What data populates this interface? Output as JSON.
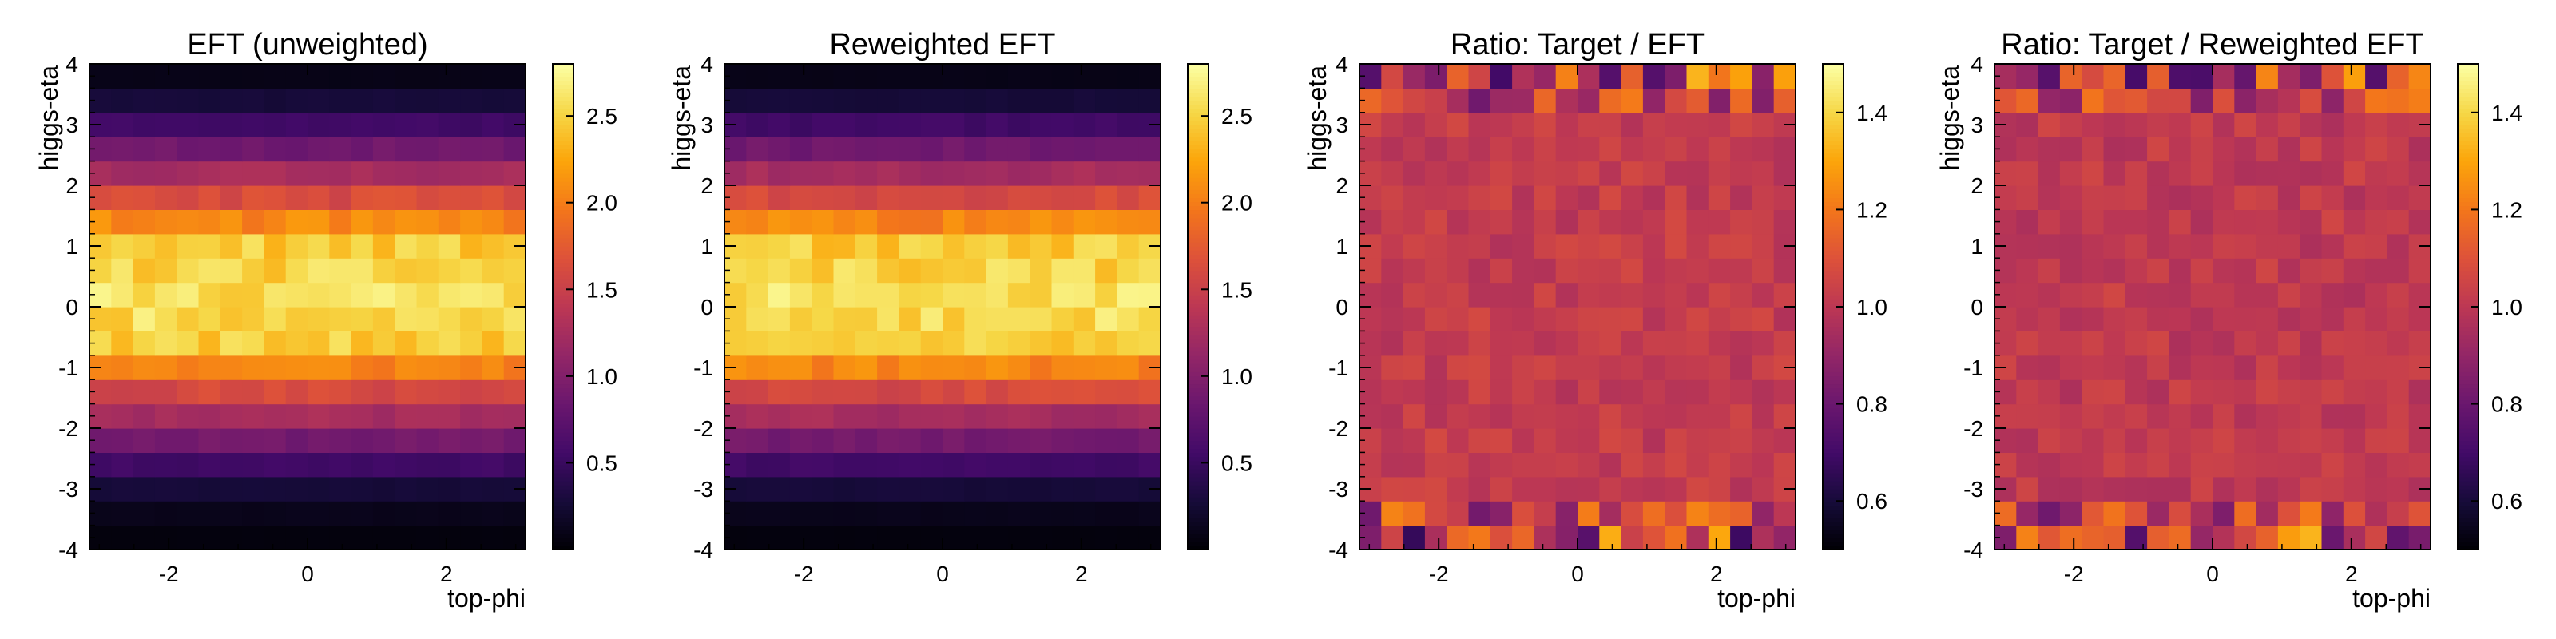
{
  "chart_data": [
    {
      "type": "heatmap",
      "title": "EFT (unweighted)",
      "xlabel": "top-phi",
      "ylabel": "higgs-eta",
      "xlim": [
        -3.14159,
        3.14159
      ],
      "ylim": [
        -4,
        4
      ],
      "x_ticks": [
        -2,
        0,
        2
      ],
      "y_ticks": [
        -4,
        -3,
        -2,
        -1,
        0,
        1,
        2,
        3,
        4
      ],
      "nx": 20,
      "ny": 20,
      "colorbar": {
        "min": 0.0,
        "max": 2.8,
        "ticks": [
          0.5,
          1.0,
          1.5,
          2.0,
          2.5
        ],
        "colormap": "inferno"
      },
      "row_values": [
        0.05,
        0.12,
        0.28,
        0.55,
        0.9,
        1.25,
        1.6,
        2.05,
        2.45,
        2.55,
        2.58,
        2.5,
        2.45,
        2.05,
        1.62,
        1.25,
        0.88,
        0.55,
        0.28,
        0.1
      ],
      "noise": 0.06,
      "seed": 11
    },
    {
      "type": "heatmap",
      "title": "Reweighted EFT",
      "xlabel": "",
      "ylabel": "higgs-eta",
      "xlim": [
        -3.14159,
        3.14159
      ],
      "ylim": [
        -4,
        4
      ],
      "x_ticks": [
        -2,
        0,
        2
      ],
      "y_ticks": [
        -4,
        -3,
        -2,
        -1,
        0,
        1,
        2,
        3,
        4
      ],
      "nx": 20,
      "ny": 20,
      "colorbar": {
        "min": 0.0,
        "max": 2.8,
        "ticks": [
          0.5,
          1.0,
          1.5,
          2.0,
          2.5
        ],
        "colormap": "inferno"
      },
      "row_values": [
        0.05,
        0.12,
        0.28,
        0.55,
        0.9,
        1.25,
        1.6,
        2.05,
        2.45,
        2.55,
        2.58,
        2.5,
        2.45,
        2.05,
        1.62,
        1.25,
        0.88,
        0.55,
        0.28,
        0.1
      ],
      "noise": 0.06,
      "seed": 29
    },
    {
      "type": "heatmap",
      "title": "Ratio: Target / EFT",
      "xlabel": "top-phi",
      "ylabel": "higgs-eta",
      "xlim": [
        -3.14159,
        3.14159
      ],
      "ylim": [
        -4,
        4
      ],
      "x_ticks": [
        -2,
        0,
        2
      ],
      "y_ticks": [
        -4,
        -3,
        -2,
        -1,
        0,
        1,
        2,
        3,
        4
      ],
      "nx": 20,
      "ny": 20,
      "colorbar": {
        "min": 0.5,
        "max": 1.5,
        "ticks": [
          0.6,
          0.8,
          1.0,
          1.2,
          1.4
        ],
        "colormap": "inferno"
      },
      "center": 1.02,
      "noise": 0.05,
      "edge_noise": 0.35,
      "seed": 47
    },
    {
      "type": "heatmap",
      "title": "Ratio: Target / Reweighted EFT",
      "xlabel": "top-phi",
      "ylabel": "higgs-eta",
      "xlim": [
        -3.14159,
        3.14159
      ],
      "ylim": [
        -4,
        4
      ],
      "x_ticks": [
        -2,
        0,
        2
      ],
      "y_ticks": [
        -4,
        -3,
        -2,
        -1,
        0,
        1,
        2,
        3,
        4
      ],
      "nx": 20,
      "ny": 20,
      "colorbar": {
        "min": 0.5,
        "max": 1.5,
        "ticks": [
          0.6,
          0.8,
          1.0,
          1.2,
          1.4
        ],
        "colormap": "inferno"
      },
      "center": 1.01,
      "noise": 0.05,
      "edge_noise": 0.35,
      "seed": 83
    }
  ]
}
